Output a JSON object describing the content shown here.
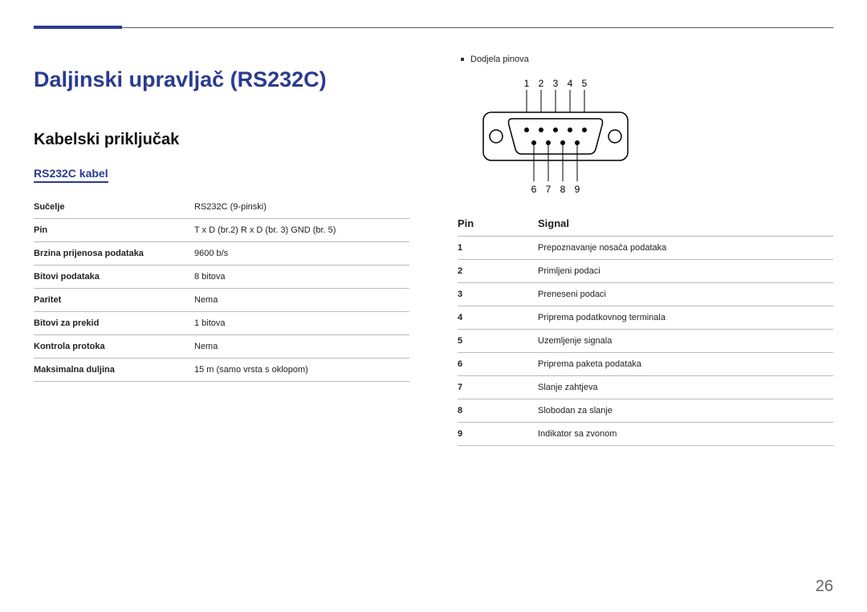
{
  "heading": "Daljinski upravljač (RS232C)",
  "subheading": "Kabelski priključak",
  "cable_section_title": "RS232C kabel",
  "spec_table": {
    "rows": [
      {
        "label": "Sučelje",
        "value": "RS232C (9-pinski)"
      },
      {
        "label": "Pin",
        "value": "T x D (br.2) R x D (br. 3) GND (br. 5)"
      },
      {
        "label": "Brzina prijenosa podataka",
        "value": "9600 b/s"
      },
      {
        "label": "Bitovi podataka",
        "value": "8 bitova"
      },
      {
        "label": "Paritet",
        "value": "Nema"
      },
      {
        "label": "Bitovi za prekid",
        "value": "1 bitova"
      },
      {
        "label": "Kontrola protoka",
        "value": "Nema"
      },
      {
        "label": "Maksimalna duljina",
        "value": "15 m (samo vrsta s oklopom)"
      }
    ]
  },
  "pinout_bullet": "Dodjela pinova",
  "connector": {
    "top_labels": [
      "1",
      "2",
      "3",
      "4",
      "5"
    ],
    "bottom_labels": [
      "6",
      "7",
      "8",
      "9"
    ],
    "stroke": "#000000",
    "fill": "#ffffff",
    "pin_fill": "#000000"
  },
  "signal_table": {
    "headers": {
      "pin": "Pin",
      "signal": "Signal"
    },
    "rows": [
      {
        "pin": "1",
        "signal": "Prepoznavanje nosača podataka"
      },
      {
        "pin": "2",
        "signal": "Primljeni podaci"
      },
      {
        "pin": "3",
        "signal": "Preneseni podaci"
      },
      {
        "pin": "4",
        "signal": "Priprema podatkovnog terminala"
      },
      {
        "pin": "5",
        "signal": "Uzemljenje signala"
      },
      {
        "pin": "6",
        "signal": "Priprema paketa podataka"
      },
      {
        "pin": "7",
        "signal": "Slanje zahtjeva"
      },
      {
        "pin": "8",
        "signal": "Slobodan za slanje"
      },
      {
        "pin": "9",
        "signal": "Indikator sa zvonom"
      }
    ]
  },
  "page_number": "26",
  "colors": {
    "accent": "#2a3b8f",
    "rule_thin": "#5b5b5b",
    "border": "#bbbbbb",
    "text": "#222222",
    "background": "#ffffff"
  }
}
